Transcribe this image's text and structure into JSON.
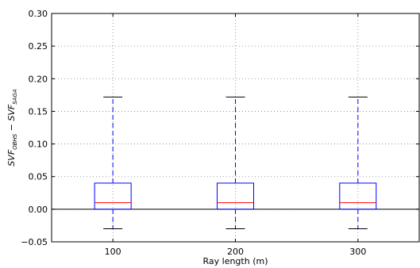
{
  "chart_data": {
    "type": "box",
    "title": "",
    "xlabel": "Ray length (m)",
    "ylabel": "SVF_OBHS − SVF_SAGA",
    "ylim": [
      -0.05,
      0.3
    ],
    "yticks": [
      -0.05,
      0.0,
      0.05,
      0.1,
      0.15,
      0.2,
      0.25,
      0.3
    ],
    "ytick_labels": [
      "−0.05",
      "0.00",
      "0.05",
      "0.10",
      "0.15",
      "0.20",
      "0.25",
      "0.30"
    ],
    "categories": [
      "100",
      "200",
      "300"
    ],
    "grid": true,
    "boxes": [
      {
        "category": "100",
        "whisker_low": -0.03,
        "q1": 0.0,
        "median": 0.01,
        "q3": 0.04,
        "whisker_high": 0.172
      },
      {
        "category": "200",
        "whisker_low": -0.03,
        "q1": 0.0,
        "median": 0.01,
        "q3": 0.04,
        "whisker_high": 0.172
      },
      {
        "category": "300",
        "whisker_low": -0.03,
        "q1": 0.0,
        "median": 0.01,
        "q3": 0.04,
        "whisker_high": 0.172
      }
    ],
    "zero_line": 0.0,
    "colors": {
      "box": "#0000ff",
      "median": "#ff0000",
      "whisker": "#0000ff",
      "cap": "#000000",
      "grid": "#808080",
      "axis": "#000000"
    }
  }
}
